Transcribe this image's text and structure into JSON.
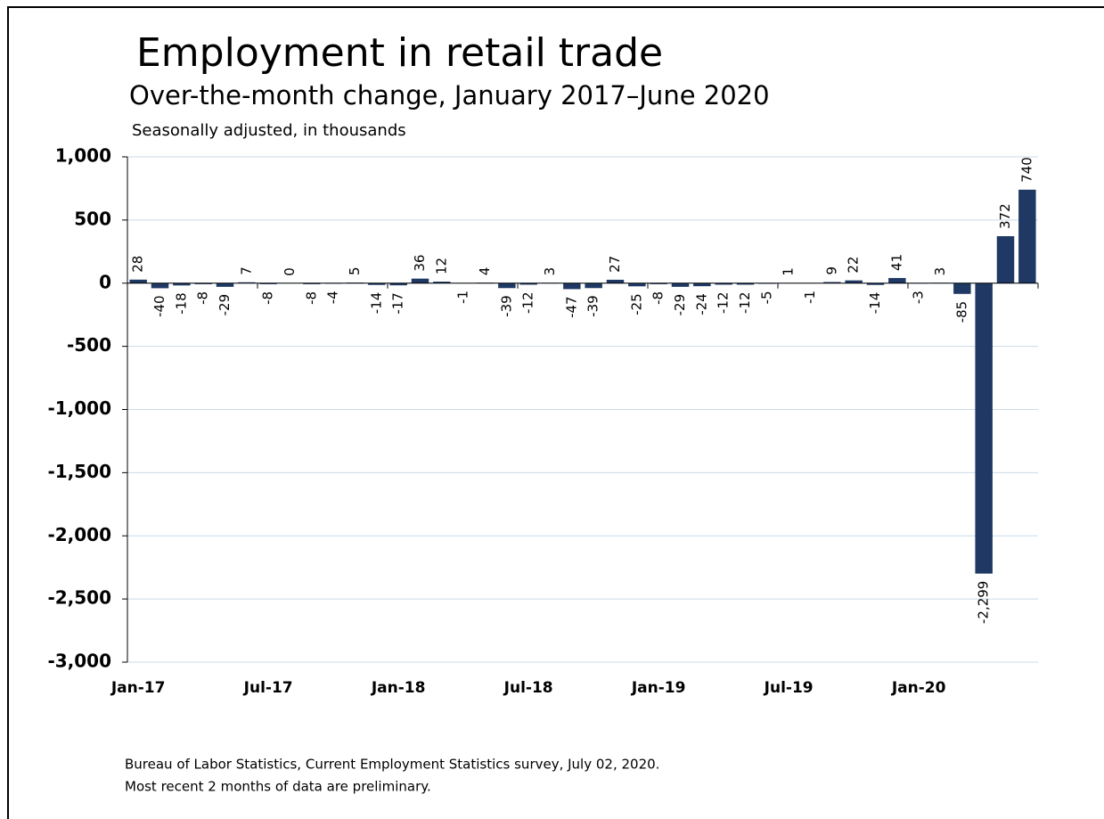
{
  "chart_data": {
    "type": "bar",
    "title": "Employment in retail trade",
    "subtitle": "Over-the-month change, January 2017–June 2020",
    "y_label": "Seasonally adjusted, in thousands",
    "notes": [
      "Bureau of Labor Statistics, Current Employment Statistics survey, July 02, 2020.",
      "Most recent 2 months of data are preliminary."
    ],
    "categories": [
      "Jan-17",
      null,
      null,
      null,
      null,
      null,
      "Jul-17",
      null,
      null,
      null,
      null,
      null,
      "Jan-18",
      null,
      null,
      null,
      null,
      null,
      "Jul-18",
      null,
      null,
      null,
      null,
      null,
      "Jan-19",
      null,
      null,
      null,
      null,
      null,
      "Jul-19",
      null,
      null,
      null,
      null,
      null,
      "Jan-20",
      null,
      null,
      null,
      null,
      null
    ],
    "values": [
      28,
      -40,
      -18,
      -8,
      -29,
      7,
      -8,
      0,
      -8,
      -4,
      5,
      -14,
      -17,
      36,
      12,
      -1,
      4,
      -39,
      -12,
      3,
      -47,
      -39,
      27,
      -25,
      -8,
      -29,
      -24,
      -12,
      -12,
      -5,
      1,
      -1,
      9,
      22,
      -14,
      41,
      -3,
      3,
      -85,
      -2299,
      372,
      740
    ],
    "value_labels": [
      "28",
      "-40",
      "-18",
      "-8",
      "-29",
      "7",
      "-8",
      "0",
      "-8",
      "-4",
      "5",
      "-14",
      "-17",
      "36",
      "12",
      "-1",
      "4",
      "-39",
      "-12",
      "3",
      "-47",
      "-39",
      "27",
      "-25",
      "-8",
      "-29",
      "-24",
      "-12",
      "-12",
      "-5",
      "1",
      "-1",
      "9",
      "22",
      "-14",
      "41",
      "-3",
      "3",
      "-85",
      "-2,299",
      "372",
      "740"
    ],
    "color": "#1f3864",
    "ylim": [
      -3000,
      1000
    ],
    "yticks": [
      {
        "value": -3000,
        "label": "-3,000"
      },
      {
        "value": -2500,
        "label": "-2,500"
      },
      {
        "value": -2000,
        "label": "-2,000"
      },
      {
        "value": -1500,
        "label": "-1,500"
      },
      {
        "value": -1000,
        "label": "-1,000"
      },
      -500,
      0,
      500,
      {
        "value": 1000,
        "label": "1,000"
      }
    ],
    "grid": true
  }
}
